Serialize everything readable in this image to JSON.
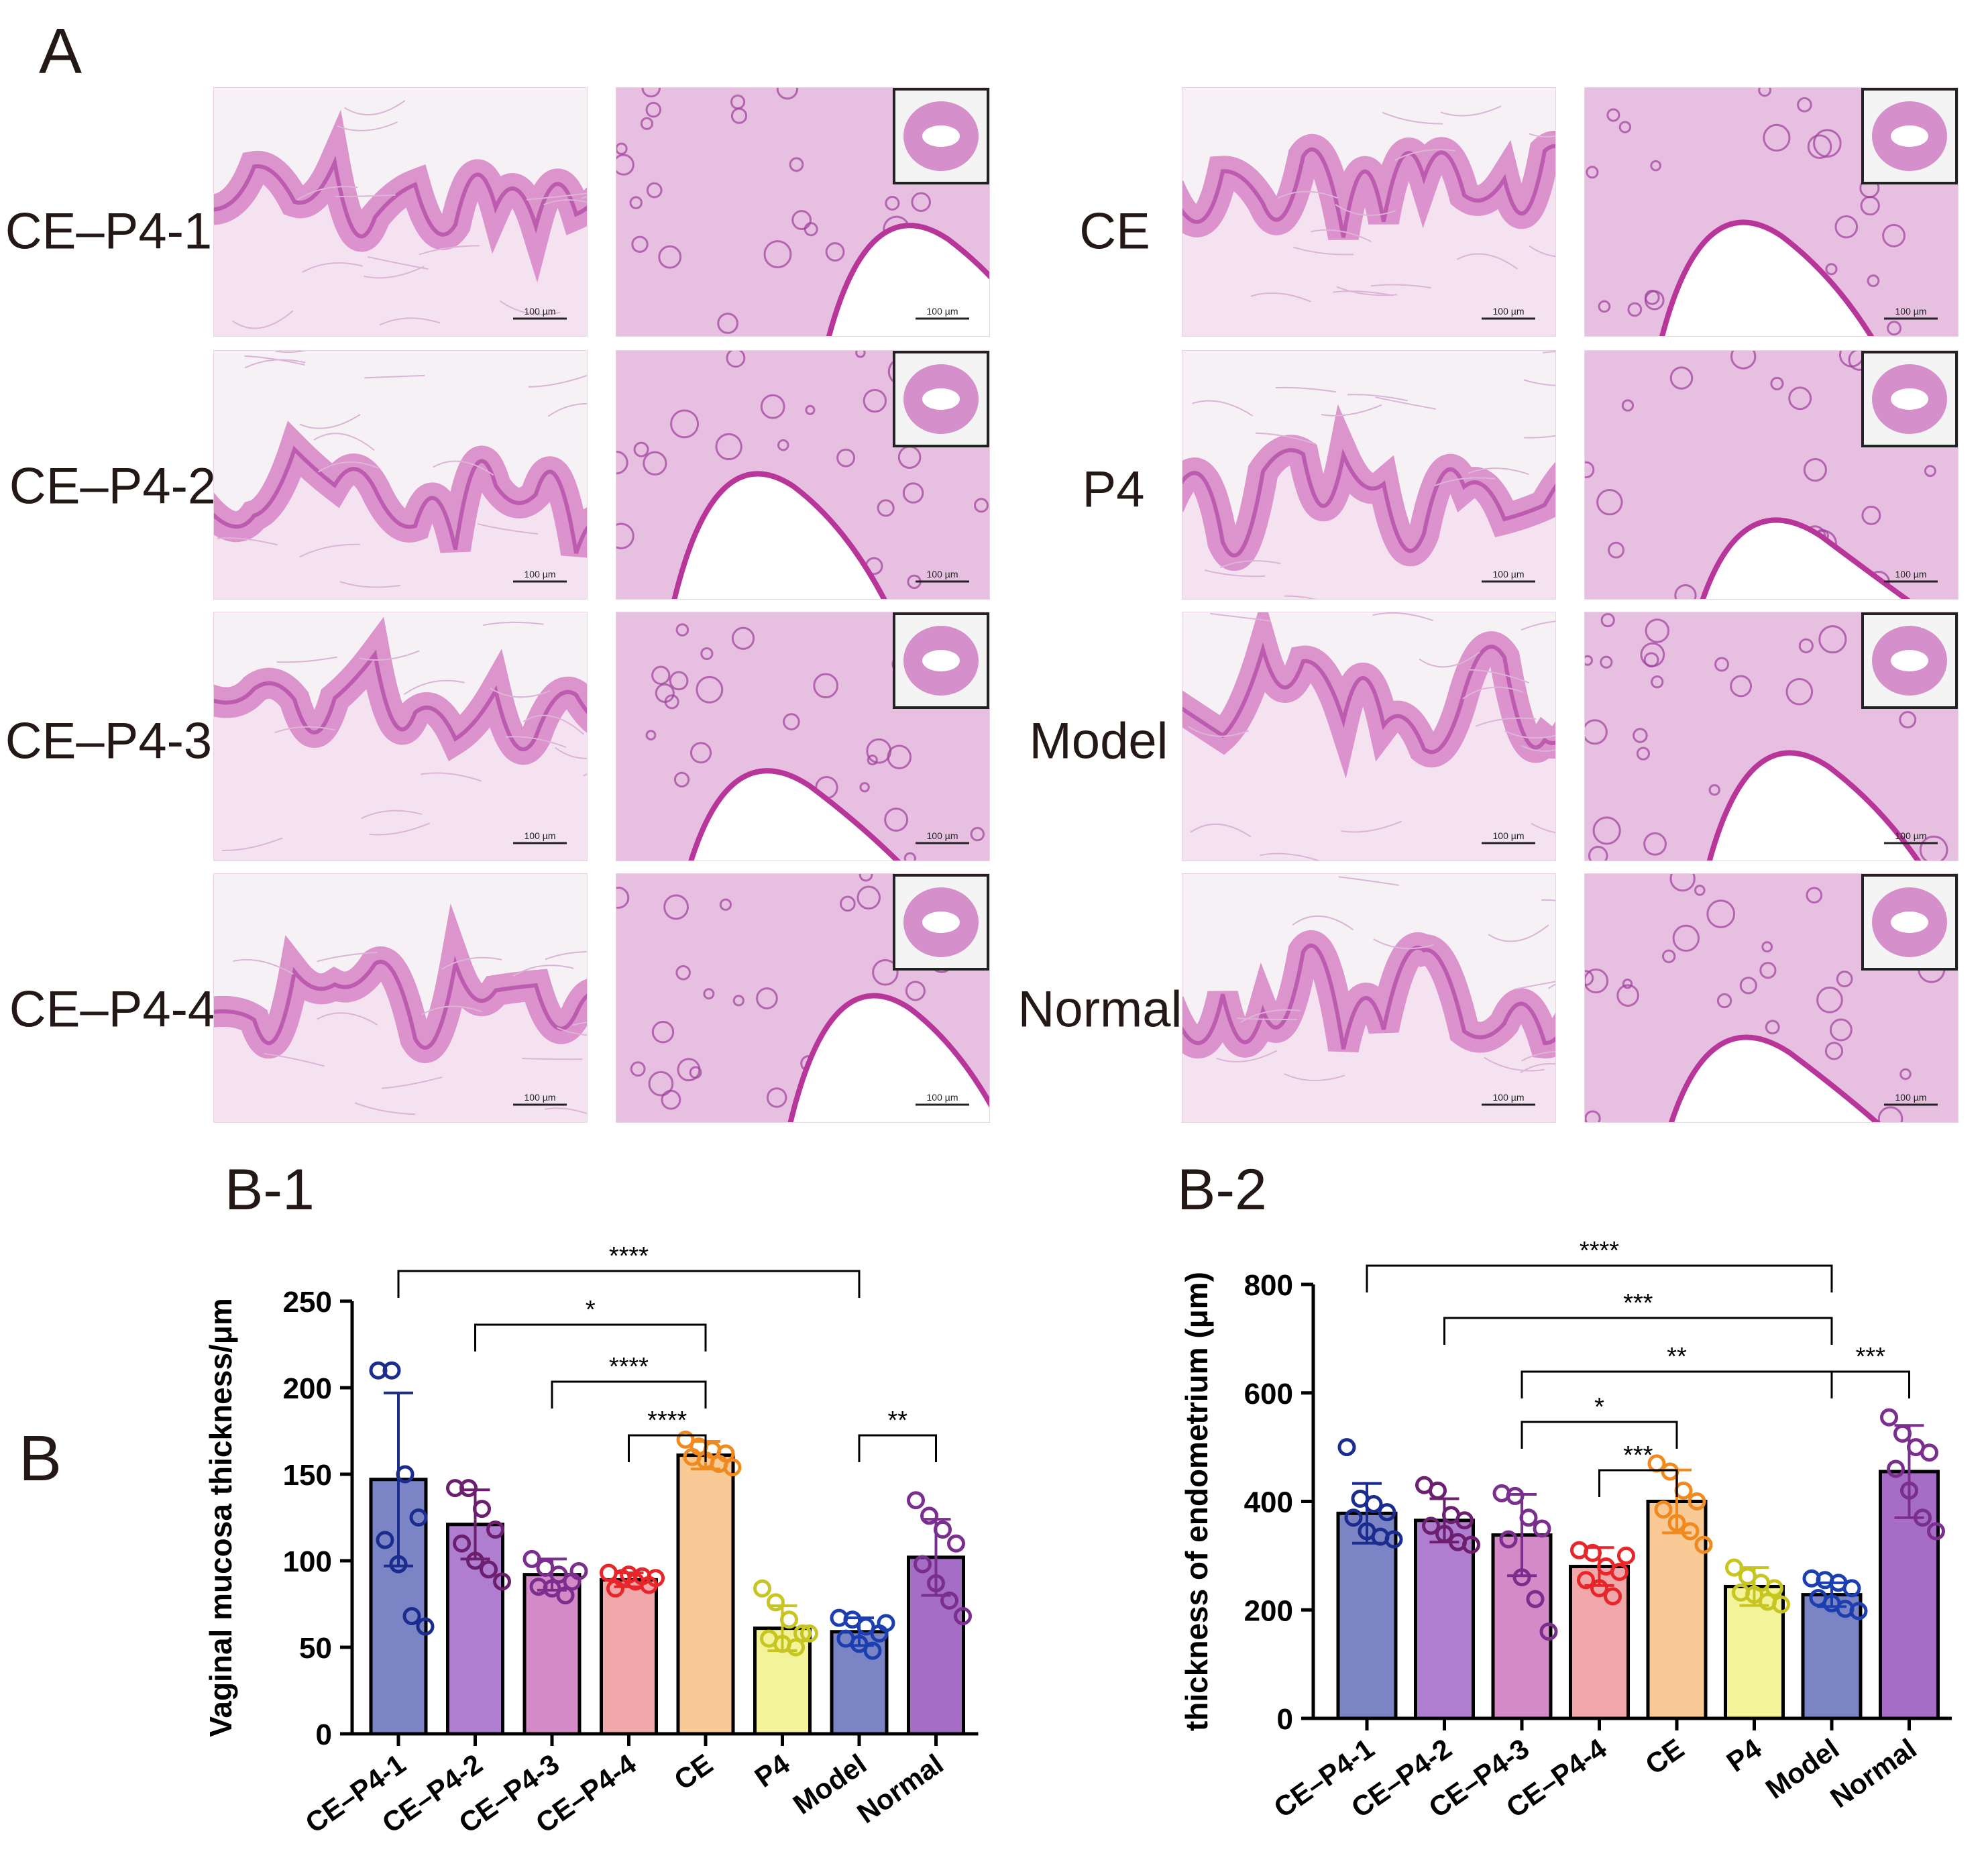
{
  "figure": {
    "label_A": "A",
    "label_B": "B",
    "label_B1": "B-1",
    "label_B2": "B-2",
    "rows_left": [
      "CE–P4-1",
      "CE–P4-2",
      "CE–P4-3",
      "CE–P4-4"
    ],
    "rows_right": [
      "CE",
      "P4",
      "Model",
      "Normal"
    ],
    "scale_bar_text": "100 µm"
  },
  "colors": {
    "CE-P4-1": "#7b84c4",
    "CE-P4-2": "#b07ed1",
    "CE-P4-3": "#d48ac6",
    "CE-P4-4": "#f0a8aa",
    "CE": "#f9c996",
    "P4": "#f3f49a",
    "Model": "#7b84c4",
    "Normal": "#a66dc6",
    "dots": [
      "#1b2c8f",
      "#6b1f6e",
      "#7a2f8f",
      "#e8262a",
      "#f08a1f",
      "#c7c521",
      "#1b3fb0",
      "#7a2f8f"
    ],
    "tissue": "#d98ac8",
    "tissue_dark": "#b44ea8",
    "stroma": "#f3dff0"
  },
  "chart_data": [
    {
      "type": "bar",
      "title": "B-1",
      "ylabel": "Vaginal mucosa thickness/μm",
      "categories": [
        "CE–P4-1",
        "CE–P4-2",
        "CE–P4-3",
        "CE–P4-4",
        "CE",
        "P4",
        "Model",
        "Normal"
      ],
      "values": [
        147,
        121,
        92,
        89,
        161,
        61,
        59,
        102
      ],
      "sd": [
        50,
        20,
        9,
        4,
        8,
        13,
        8,
        22
      ],
      "points": [
        [
          210,
          210,
          150,
          125,
          112,
          98,
          68,
          62
        ],
        [
          142,
          142,
          130,
          118,
          110,
          100,
          95,
          88
        ],
        [
          101,
          96,
          92,
          88,
          85,
          84,
          80,
          94
        ],
        [
          93,
          90,
          88,
          86,
          84,
          92,
          91,
          90
        ],
        [
          170,
          166,
          164,
          162,
          160,
          158,
          156,
          154
        ],
        [
          84,
          76,
          66,
          58,
          55,
          52,
          50,
          58
        ],
        [
          67,
          66,
          62,
          58,
          55,
          52,
          48,
          64
        ],
        [
          135,
          126,
          118,
          110,
          98,
          87,
          77,
          68
        ]
      ],
      "ylim": [
        0,
        250
      ],
      "yticks": [
        "0",
        "50",
        "100",
        "150",
        "200",
        "250"
      ],
      "brackets": [
        {
          "from": 0,
          "to": 6,
          "label": "****"
        },
        {
          "from": 1,
          "to": 4,
          "label": "*"
        },
        {
          "from": 2,
          "to": 4,
          "label": "****"
        },
        {
          "from": 3,
          "to": 4,
          "label": "****"
        },
        {
          "from": 6,
          "to": 7,
          "label": "**"
        }
      ]
    },
    {
      "type": "bar",
      "title": "B-2",
      "ylabel": "thickness of endometrium (μm)",
      "categories": [
        "CE–P4-1",
        "CE–P4-2",
        "CE–P4-3",
        "CE–P4-4",
        "CE",
        "P4",
        "Model",
        "Normal"
      ],
      "values": [
        378,
        365,
        338,
        280,
        400,
        243,
        228,
        455
      ],
      "sd": [
        55,
        40,
        75,
        35,
        58,
        35,
        22,
        85
      ],
      "points": [
        [
          500,
          405,
          395,
          380,
          370,
          345,
          335,
          330
        ],
        [
          430,
          420,
          375,
          365,
          355,
          340,
          325,
          320
        ],
        [
          415,
          410,
          370,
          350,
          330,
          260,
          220,
          160
        ],
        [
          310,
          305,
          280,
          270,
          255,
          240,
          225,
          300
        ],
        [
          470,
          455,
          420,
          400,
          385,
          360,
          345,
          320
        ],
        [
          278,
          262,
          250,
          240,
          232,
          228,
          215,
          210
        ],
        [
          258,
          255,
          250,
          240,
          222,
          212,
          202,
          198
        ],
        [
          555,
          525,
          500,
          490,
          460,
          420,
          370,
          345
        ]
      ],
      "ylim": [
        0,
        800
      ],
      "yticks": [
        "0",
        "200",
        "400",
        "600",
        "800"
      ],
      "brackets": [
        {
          "from": 0,
          "to": 6,
          "label": "****"
        },
        {
          "from": 1,
          "to": 6,
          "label": "***"
        },
        {
          "from": 2,
          "to": 6,
          "label": "**"
        },
        {
          "from": 6,
          "to": 7,
          "label": "***"
        },
        {
          "from": 2,
          "to": 4,
          "label": "*"
        },
        {
          "from": 3,
          "to": 4,
          "label": "***"
        }
      ]
    }
  ]
}
